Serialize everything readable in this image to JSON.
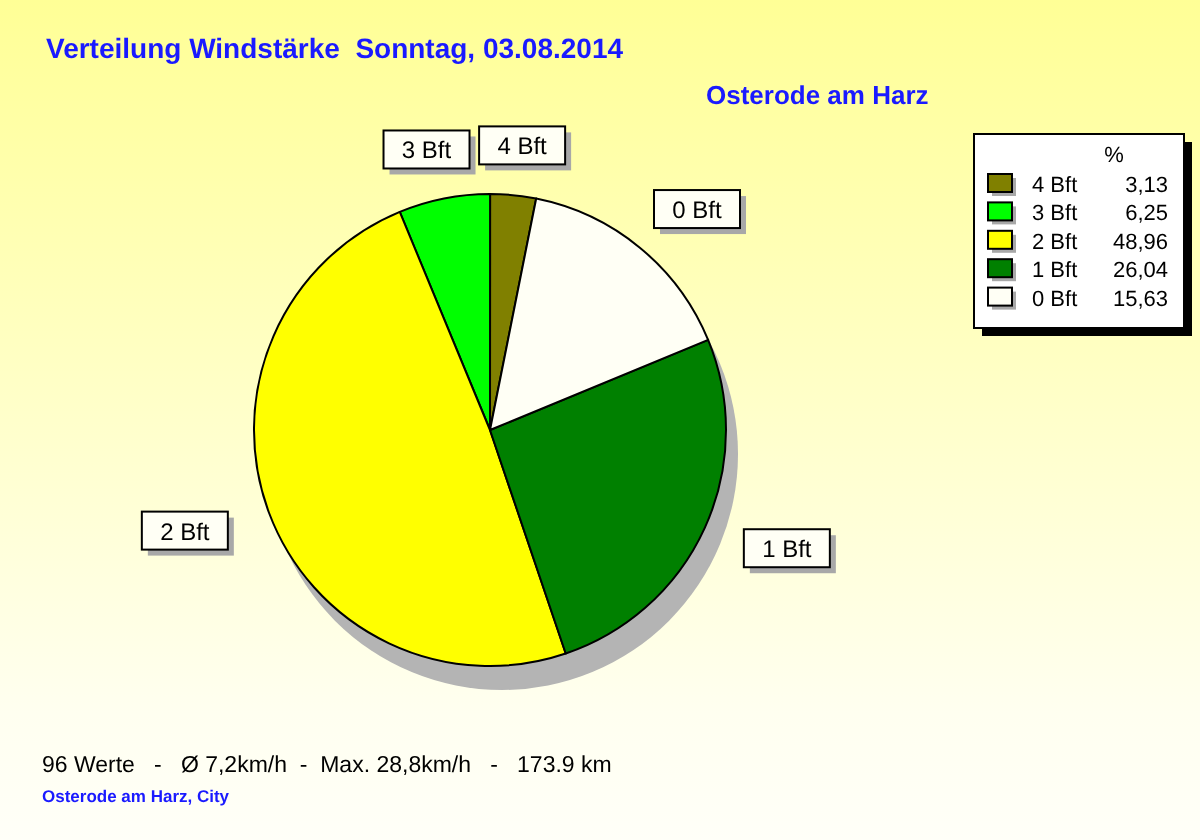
{
  "chart_data": {
    "type": "pie",
    "title": "Verteilung Windstärke  Sonntag, 03.08.2014",
    "subtitle": "Osterode am Harz",
    "legend_title": "%",
    "categories": [
      "4 Bft",
      "3 Bft",
      "2 Bft",
      "1 Bft",
      "0 Bft"
    ],
    "values": [
      3.13,
      6.25,
      48.96,
      26.04,
      15.63
    ],
    "value_labels": [
      "3,13",
      "6,25",
      "48,96",
      "26,04",
      "15,63"
    ],
    "colors": [
      "#808000",
      "#00ff00",
      "#ffff00",
      "#008000",
      "#fffff5"
    ],
    "legend": "top right",
    "annotations": [
      "96 Werte   -   Ø 7,2km/h  -  Max. 28,8km/h   -   173.9 km",
      "Osterode am Harz, City"
    ]
  }
}
